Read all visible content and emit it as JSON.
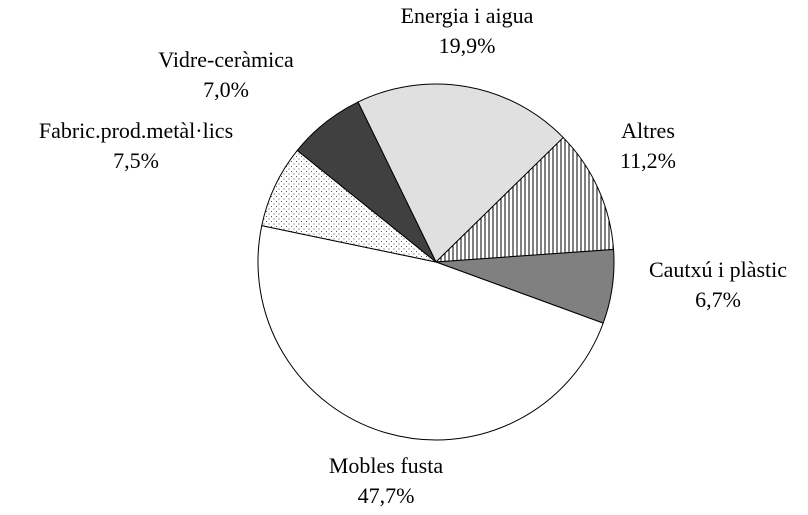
{
  "chart_data": {
    "type": "pie",
    "categories": [
      "Energia i aigua",
      "Altres",
      "Cautxú i plàstic",
      "Mobles fusta",
      "Fabric.prod.metàl·lics",
      "Vidre-ceràmica"
    ],
    "values": [
      19.9,
      11.2,
      6.7,
      47.7,
      7.5,
      7.0
    ],
    "value_labels": [
      "19,9%",
      "11,2%",
      "6,7%",
      "47,7%",
      "7,5%",
      "7,0%"
    ],
    "colors": [
      "#e0e0e0",
      "url(#vlines)",
      "#808080",
      "#ffffff",
      "url(#dots)",
      "#404040"
    ]
  }
}
